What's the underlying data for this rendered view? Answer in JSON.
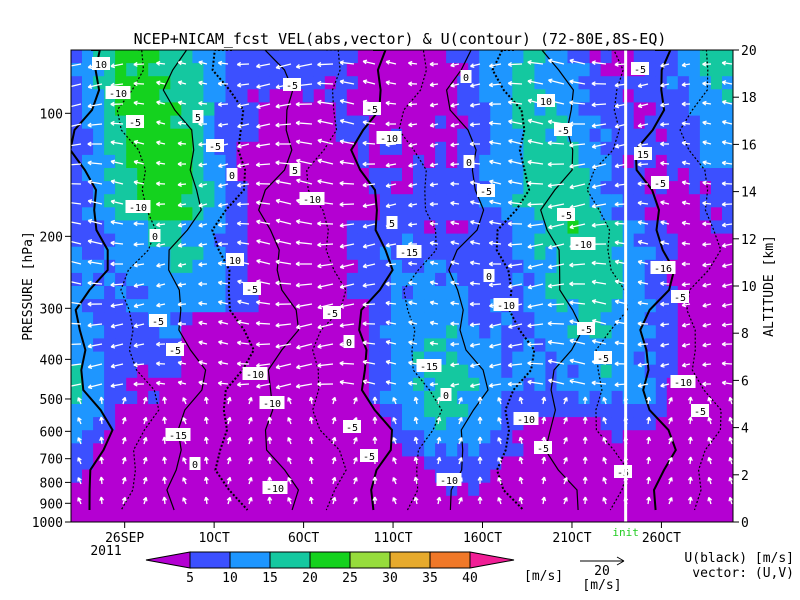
{
  "chart_data": {
    "type": "heatmap",
    "title": "NCEP+NICAM_fcst VEL(abs,vector) & U(contour)  (72-80E,8S-EQ)",
    "ylabel": "PRESSURE [hPa]",
    "y2label": "ALTITUDE [km]",
    "ylim": [
      1000,
      70
    ],
    "y_scale": "log",
    "y_ticks": [
      1000,
      900,
      800,
      700,
      600,
      500,
      400,
      300,
      200,
      100
    ],
    "y2lim": [
      0,
      20
    ],
    "y2_ticks": [
      0,
      2,
      4,
      6,
      8,
      10,
      12,
      14,
      16,
      18,
      20
    ],
    "x_ticks": [
      {
        "date": "2011-09-26",
        "label": "26SEP"
      },
      {
        "date": "2011-10-01",
        "label": "1OCT"
      },
      {
        "date": "2011-10-06",
        "label": "6OCT"
      },
      {
        "date": "2011-10-11",
        "label": "11OCT"
      },
      {
        "date": "2011-10-16",
        "label": "16OCT"
      },
      {
        "date": "2011-10-21",
        "label": "21OCT"
      },
      {
        "date": "2011-10-26",
        "label": "26OCT"
      }
    ],
    "x_year_label": "2011",
    "xlim": [
      "2011-09-23",
      "2011-10-30"
    ],
    "init_line": {
      "date": "2011-10-24",
      "label": "init"
    },
    "colorbar": {
      "unit": "[m/s]",
      "tick_labels": [
        "5",
        "10",
        "15",
        "20",
        "25",
        "30",
        "35",
        "40"
      ],
      "levels": [
        5,
        10,
        15,
        20,
        25,
        30,
        35,
        40
      ],
      "colors": [
        "#b400d2",
        "#3c50ff",
        "#1e96ff",
        "#14c8a0",
        "#14d21e",
        "#96dc3c",
        "#e6aa2d",
        "#f07828",
        "#f01e96"
      ]
    },
    "vector_key": {
      "magnitude_label": "20",
      "unit": "[m/s]"
    },
    "legend_text": {
      "line1": "U(black) [m/s]",
      "line2": "vector: (U,V)"
    },
    "contour_labels": [
      "10",
      "5",
      "5",
      "5",
      "0",
      "-5",
      "-10",
      "-15",
      "-10",
      "-5",
      "0",
      "-5",
      "-16",
      "-5",
      "-10",
      "-5",
      "-10",
      "10",
      "15",
      "-10",
      "10",
      "-5",
      "-15",
      "-10",
      "-5",
      "-10",
      "-5",
      "-10",
      "-15",
      "-10",
      "-5",
      "-5",
      "0",
      "-5",
      "-10",
      "-5",
      "-10",
      "-5",
      "-5",
      "-10",
      "-5",
      "0",
      "-5",
      "-5",
      "0",
      "-5",
      "0",
      "0",
      "-5",
      "-5",
      "-5",
      "0"
    ]
  }
}
